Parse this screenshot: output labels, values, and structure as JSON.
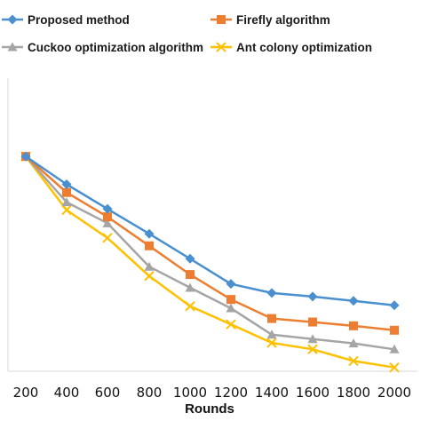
{
  "chart_data": {
    "type": "line",
    "xlabel": "Rounds",
    "ylabel": "",
    "categories": [
      "200",
      "400",
      "600",
      "800",
      "1000",
      "1200",
      "1400",
      "1600",
      "1800",
      "2000"
    ],
    "ylim": [
      0,
      1
    ],
    "grid": false,
    "legend_position": "top",
    "series": [
      {
        "name": "Proposed method",
        "color": "#4a8fd0",
        "marker": "diamond",
        "values": [
          0.733,
          0.638,
          0.554,
          0.469,
          0.384,
          0.298,
          0.267,
          0.255,
          0.24,
          0.225
        ]
      },
      {
        "name": "Firefly algorithm",
        "color": "#ed7d31",
        "marker": "square",
        "values": [
          0.733,
          0.61,
          0.527,
          0.428,
          0.33,
          0.245,
          0.18,
          0.168,
          0.155,
          0.14
        ]
      },
      {
        "name": "Cuckoo optimization algorithm",
        "color": "#a5a5a5",
        "marker": "triangle",
        "values": [
          0.733,
          0.577,
          0.505,
          0.357,
          0.285,
          0.215,
          0.125,
          0.11,
          0.095,
          0.075
        ]
      },
      {
        "name": "Ant colony optimization",
        "color": "#ffc000",
        "marker": "x",
        "values": [
          0.733,
          0.55,
          0.455,
          0.325,
          0.222,
          0.16,
          0.097,
          0.075,
          0.035,
          0.013
        ]
      }
    ]
  }
}
